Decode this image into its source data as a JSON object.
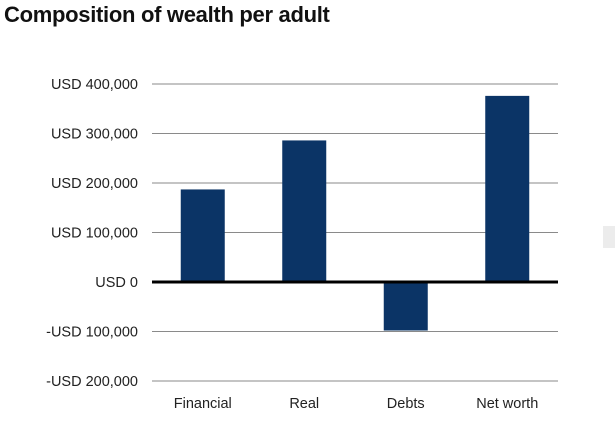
{
  "title": "Composition of wealth per adult",
  "chart_data": {
    "type": "bar",
    "title": "Composition of wealth per adult",
    "categories": [
      "Financial",
      "Real",
      "Debts",
      "Net worth"
    ],
    "values": [
      187000,
      286000,
      -98000,
      376000
    ],
    "ylim": [
      -200000,
      400000
    ],
    "yticks": [
      400000,
      300000,
      200000,
      100000,
      0,
      -100000,
      -200000
    ],
    "ytick_labels": [
      "USD 400,000",
      "USD 300,000",
      "USD 200,000",
      "USD 100,000",
      "USD 0",
      "-USD 100,000",
      "-USD 200,000"
    ],
    "xlabel": "",
    "ylabel": "",
    "bar_color": "#0b3466",
    "grid": true,
    "legend": "none"
  }
}
